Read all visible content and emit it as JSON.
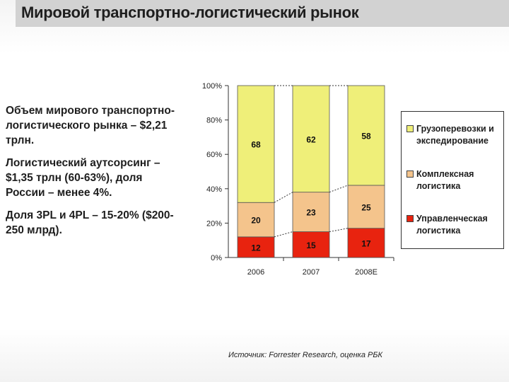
{
  "header": {
    "title": "Мировой транспортно-логистический рынок"
  },
  "summary": {
    "para1": "Объем мирового транспортно-логистического рынка – $2,21 трлн.",
    "para2": "Логистический аутсорсинг – $1,35 трлн (60-63%), доля России – менее 4%.",
    "para3": "Доля 3PL и 4PL – 15-20% ($200-250 млрд)."
  },
  "source": "Источник: Forrester Research, оценка РБК",
  "chart_data": {
    "type": "bar",
    "stacked": true,
    "categories": [
      "2006",
      "2007",
      "2008E"
    ],
    "series": [
      {
        "name": "Управленческая логистика",
        "values": [
          12,
          15,
          17
        ],
        "color": "#e8230f"
      },
      {
        "name": "Комплексная логистика",
        "values": [
          20,
          23,
          25
        ],
        "color": "#f4c48c"
      },
      {
        "name": "Грузоперевозки и экспедирование",
        "values": [
          68,
          62,
          58
        ],
        "color": "#efef79"
      }
    ],
    "yticks": [
      "0%",
      "20%",
      "40%",
      "60%",
      "80%",
      "100%"
    ],
    "ylim": [
      0,
      100
    ],
    "legend_position": "right",
    "grid": false
  }
}
